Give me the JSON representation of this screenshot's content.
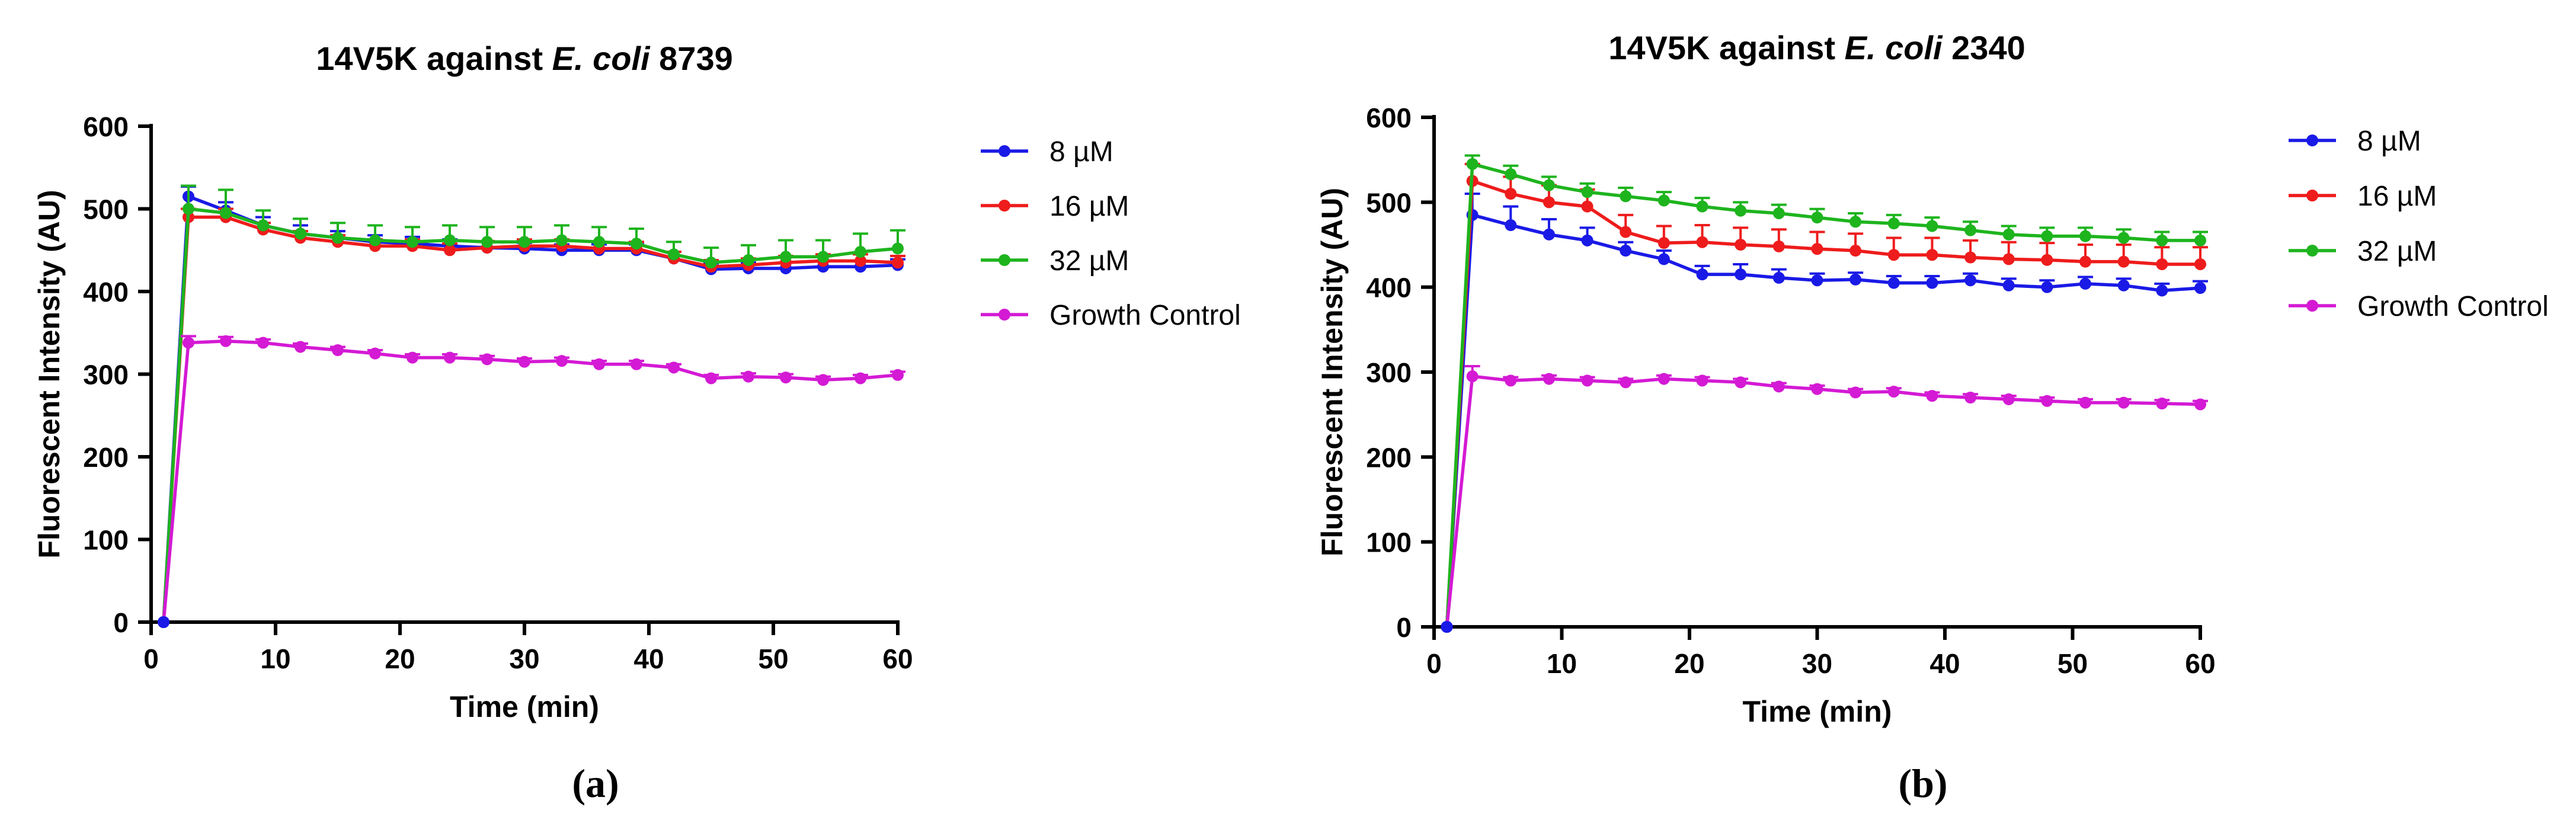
{
  "chart_data": [
    {
      "type": "line",
      "panel_label": "(a)",
      "title_parts": [
        "14V5K against ",
        "E. coli",
        " 8739"
      ],
      "xlabel": "Time (min)",
      "ylabel": "Fluorescent Intensity (AU)",
      "xlim": [
        0,
        60
      ],
      "ylim": [
        0,
        600
      ],
      "xticks": [
        0,
        10,
        20,
        30,
        40,
        50,
        60
      ],
      "yticks": [
        0,
        100,
        200,
        300,
        400,
        500,
        600
      ],
      "x": [
        1,
        3,
        6,
        9,
        12,
        15,
        18,
        21,
        24,
        27,
        30,
        33,
        36,
        39,
        42,
        45,
        48,
        51,
        54,
        57,
        60
      ],
      "legend_position": "right",
      "series": [
        {
          "name": "8 µM",
          "color": "#1a1ae6",
          "values": [
            0,
            515,
            498,
            480,
            470,
            465,
            460,
            458,
            455,
            453,
            452,
            450,
            450,
            450,
            440,
            427,
            428,
            428,
            430,
            430,
            432
          ],
          "errors": [
            0,
            12,
            10,
            10,
            10,
            8,
            8,
            8,
            8,
            7,
            7,
            7,
            7,
            7,
            8,
            7,
            7,
            7,
            7,
            7,
            7
          ]
        },
        {
          "name": "16 µM",
          "color": "#ee1c1c",
          "values": [
            0,
            490,
            490,
            475,
            465,
            460,
            455,
            455,
            450,
            453,
            455,
            455,
            452,
            452,
            440,
            430,
            432,
            435,
            437,
            437,
            435
          ],
          "errors": [
            0,
            10,
            10,
            8,
            8,
            8,
            8,
            8,
            8,
            8,
            8,
            8,
            8,
            8,
            8,
            8,
            8,
            8,
            8,
            8,
            8
          ]
        },
        {
          "name": "32 µM",
          "color": "#1eb41e",
          "values": [
            0,
            500,
            495,
            480,
            470,
            465,
            462,
            460,
            462,
            460,
            460,
            462,
            460,
            458,
            445,
            435,
            438,
            442,
            442,
            448,
            452
          ],
          "errors": [
            0,
            28,
            28,
            18,
            18,
            18,
            18,
            18,
            18,
            18,
            18,
            18,
            18,
            18,
            15,
            18,
            18,
            20,
            20,
            22,
            22
          ]
        },
        {
          "name": "Growth Control",
          "color": "#d41ad4",
          "values": [
            0,
            338,
            340,
            338,
            333,
            329,
            325,
            320,
            320,
            318,
            315,
            316,
            312,
            312,
            308,
            295,
            297,
            296,
            293,
            295,
            299
          ],
          "errors": [
            0,
            8,
            5,
            4,
            4,
            4,
            4,
            4,
            4,
            4,
            4,
            4,
            4,
            4,
            4,
            4,
            4,
            4,
            4,
            4,
            4
          ]
        }
      ]
    },
    {
      "type": "line",
      "panel_label": "(b)",
      "title_parts": [
        "14V5K against ",
        "E. coli",
        " 2340"
      ],
      "xlabel": "Time (min)",
      "ylabel": "Fluorescent Intensity (AU)",
      "xlim": [
        0,
        60
      ],
      "ylim": [
        0,
        600
      ],
      "xticks": [
        0,
        10,
        20,
        30,
        40,
        50,
        60
      ],
      "yticks": [
        0,
        100,
        200,
        300,
        400,
        500,
        600
      ],
      "x": [
        1,
        3,
        6,
        9,
        12,
        15,
        18,
        21,
        24,
        27,
        30,
        33,
        36,
        39,
        42,
        45,
        48,
        51,
        54,
        57,
        60
      ],
      "legend_position": "right",
      "series": [
        {
          "name": "8 µM",
          "color": "#1a1ae6",
          "values": [
            0,
            485,
            473,
            462,
            455,
            443,
            433,
            415,
            415,
            411,
            408,
            409,
            405,
            405,
            408,
            402,
            400,
            404,
            402,
            396,
            399
          ],
          "errors": [
            0,
            25,
            22,
            18,
            15,
            10,
            10,
            10,
            12,
            10,
            8,
            8,
            8,
            8,
            8,
            8,
            8,
            8,
            8,
            8,
            8
          ]
        },
        {
          "name": "16 µM",
          "color": "#ee1c1c",
          "values": [
            0,
            525,
            510,
            500,
            495,
            465,
            452,
            453,
            450,
            448,
            445,
            443,
            438,
            438,
            435,
            433,
            432,
            430,
            430,
            427,
            427
          ],
          "errors": [
            0,
            20,
            20,
            20,
            20,
            20,
            20,
            20,
            20,
            20,
            20,
            20,
            20,
            20,
            20,
            20,
            20,
            20,
            20,
            20,
            20
          ]
        },
        {
          "name": "32 µM",
          "color": "#1eb41e",
          "values": [
            0,
            545,
            533,
            520,
            512,
            507,
            502,
            495,
            490,
            487,
            482,
            477,
            475,
            472,
            467,
            462,
            460,
            460,
            458,
            455,
            455
          ],
          "errors": [
            0,
            10,
            10,
            10,
            10,
            10,
            10,
            10,
            10,
            10,
            10,
            10,
            10,
            10,
            10,
            10,
            10,
            10,
            10,
            10,
            10
          ]
        },
        {
          "name": "Growth Control",
          "color": "#d41ad4",
          "values": [
            0,
            295,
            290,
            292,
            290,
            288,
            292,
            290,
            288,
            283,
            280,
            276,
            277,
            272,
            270,
            268,
            266,
            264,
            264,
            263,
            262
          ],
          "errors": [
            0,
            12,
            4,
            4,
            4,
            4,
            4,
            4,
            4,
            4,
            4,
            4,
            4,
            4,
            4,
            4,
            4,
            4,
            4,
            4,
            4
          ]
        }
      ]
    }
  ]
}
